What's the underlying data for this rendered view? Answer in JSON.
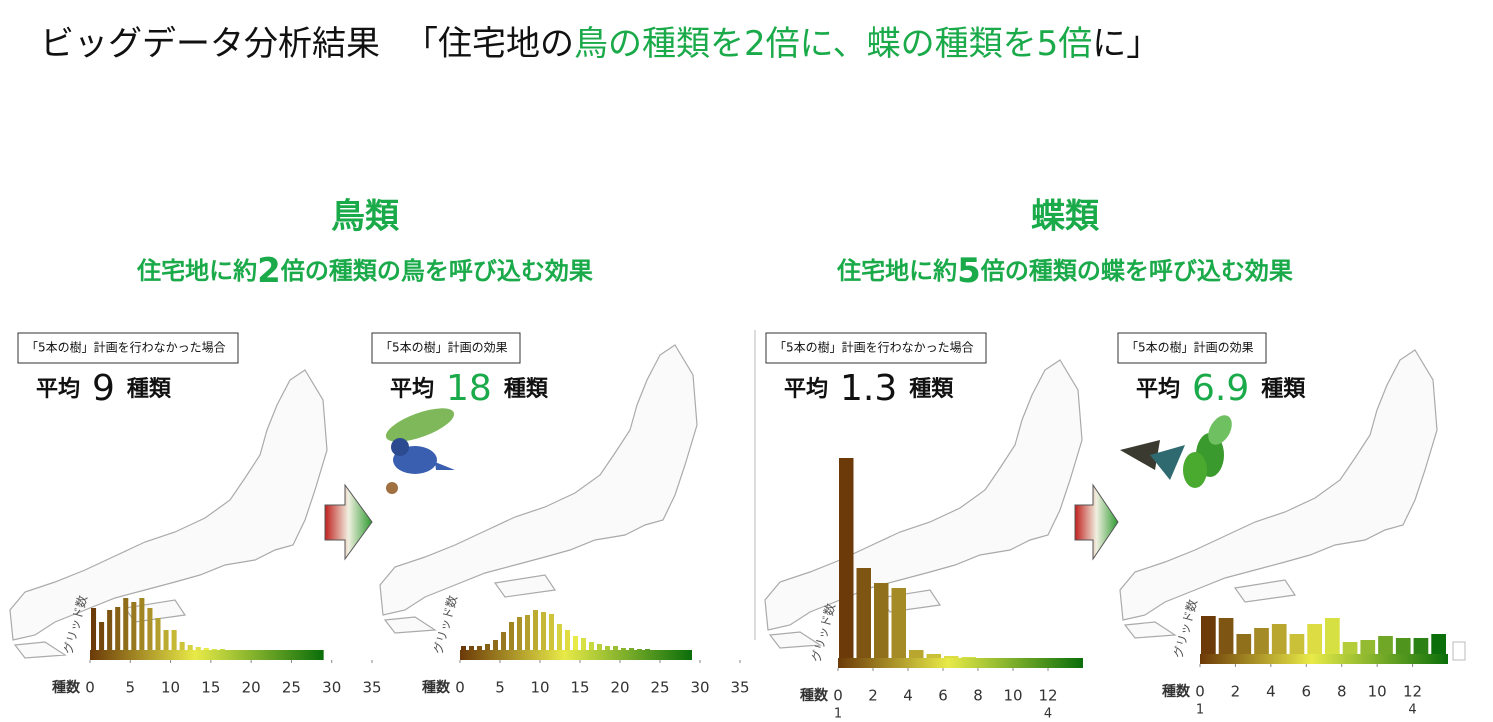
{
  "title": {
    "lead": "ビッグデータ分析結果",
    "open": "「住宅地の",
    "highlight": "鳥の種類を2倍に、蝶の種類を5倍",
    "close": "に」"
  },
  "groups": [
    {
      "heading": "鳥類",
      "effect": {
        "before": "住宅地に約",
        "factor": "2",
        "after": "倍の種類の鳥を呼び込む効果"
      }
    },
    {
      "heading": "蝶類",
      "effect": {
        "before": "住宅地に約",
        "factor": "5",
        "after": "倍の種類の蝶を呼び込む効果"
      }
    }
  ],
  "maps": [
    {
      "label": "「5本の樹」計画を行わなかった場合",
      "average": {
        "prefix": "平均",
        "value": 9,
        "unit": "種類"
      },
      "value_color": "#111111",
      "histogram": {
        "y_label": "グリッド数",
        "x_label": "種数",
        "xlim": [
          0,
          35
        ],
        "xticks": [
          0,
          5,
          10,
          15,
          20,
          25,
          30,
          35
        ],
        "bins": [
          0,
          1,
          2,
          3,
          4,
          5,
          6,
          7,
          8,
          9,
          10,
          11,
          12,
          13,
          14,
          15,
          16,
          17,
          18,
          19,
          20,
          21,
          22,
          23,
          24,
          25,
          26,
          27,
          28,
          29
        ],
        "counts": [
          42,
          28,
          40,
          43,
          52,
          48,
          52,
          42,
          32,
          20,
          20,
          8,
          5,
          3,
          2,
          1,
          1,
          0,
          0,
          0,
          0,
          0,
          0,
          0,
          0,
          0,
          0,
          0,
          0
        ]
      }
    },
    {
      "label": "「5本の樹」計画の効果",
      "average": {
        "prefix": "平均",
        "value": 18,
        "unit": "種類"
      },
      "value_color": "#1aaa4a",
      "histogram": {
        "y_label": "グリッド数",
        "x_label": "種数",
        "xlim": [
          0,
          35
        ],
        "xticks": [
          0,
          5,
          10,
          15,
          20,
          25,
          30,
          35
        ],
        "bins": [
          0,
          1,
          2,
          3,
          4,
          5,
          6,
          7,
          8,
          9,
          10,
          11,
          12,
          13,
          14,
          15,
          16,
          17,
          18,
          19,
          20,
          21,
          22,
          23,
          24,
          25,
          26,
          27,
          28,
          29
        ],
        "counts": [
          4,
          4,
          4,
          6,
          10,
          18,
          28,
          33,
          35,
          40,
          38,
          36,
          26,
          20,
          14,
          12,
          8,
          6,
          4,
          4,
          2,
          2,
          1,
          1,
          0,
          0,
          0,
          0,
          0
        ]
      }
    },
    {
      "label": "「5本の樹」計画を行わなかった場合",
      "average": {
        "prefix": "平均",
        "value": 1.3,
        "unit": "種類"
      },
      "value_color": "#111111",
      "histogram": {
        "y_label": "グリッド数",
        "x_label": "種数",
        "xlim": [
          0,
          14
        ],
        "xticks": [
          0,
          2,
          4,
          6,
          8,
          10,
          12
        ],
        "range_labels": [
          "1",
          "4"
        ],
        "bins": [
          0,
          1,
          2,
          3,
          4,
          5,
          6,
          7,
          8,
          9,
          10,
          11,
          12,
          13,
          14
        ],
        "counts": [
          200,
          90,
          75,
          70,
          8,
          4,
          2,
          1,
          0,
          0,
          0,
          0,
          0,
          0
        ]
      }
    },
    {
      "label": "「5本の樹」計画の効果",
      "average": {
        "prefix": "平均",
        "value": 6.9,
        "unit": "種類"
      },
      "value_color": "#1aaa4a",
      "histogram": {
        "y_label": "グリッド数",
        "x_label": "種数",
        "xlim": [
          0,
          14
        ],
        "xticks": [
          0,
          2,
          4,
          6,
          8,
          10,
          12
        ],
        "range_labels": [
          "1",
          "4"
        ],
        "bins": [
          0,
          1,
          2,
          3,
          4,
          5,
          6,
          7,
          8,
          9,
          10,
          11,
          12,
          13,
          14
        ],
        "counts": [
          38,
          36,
          20,
          26,
          30,
          20,
          30,
          36,
          12,
          14,
          18,
          16,
          16,
          20
        ]
      }
    }
  ]
}
